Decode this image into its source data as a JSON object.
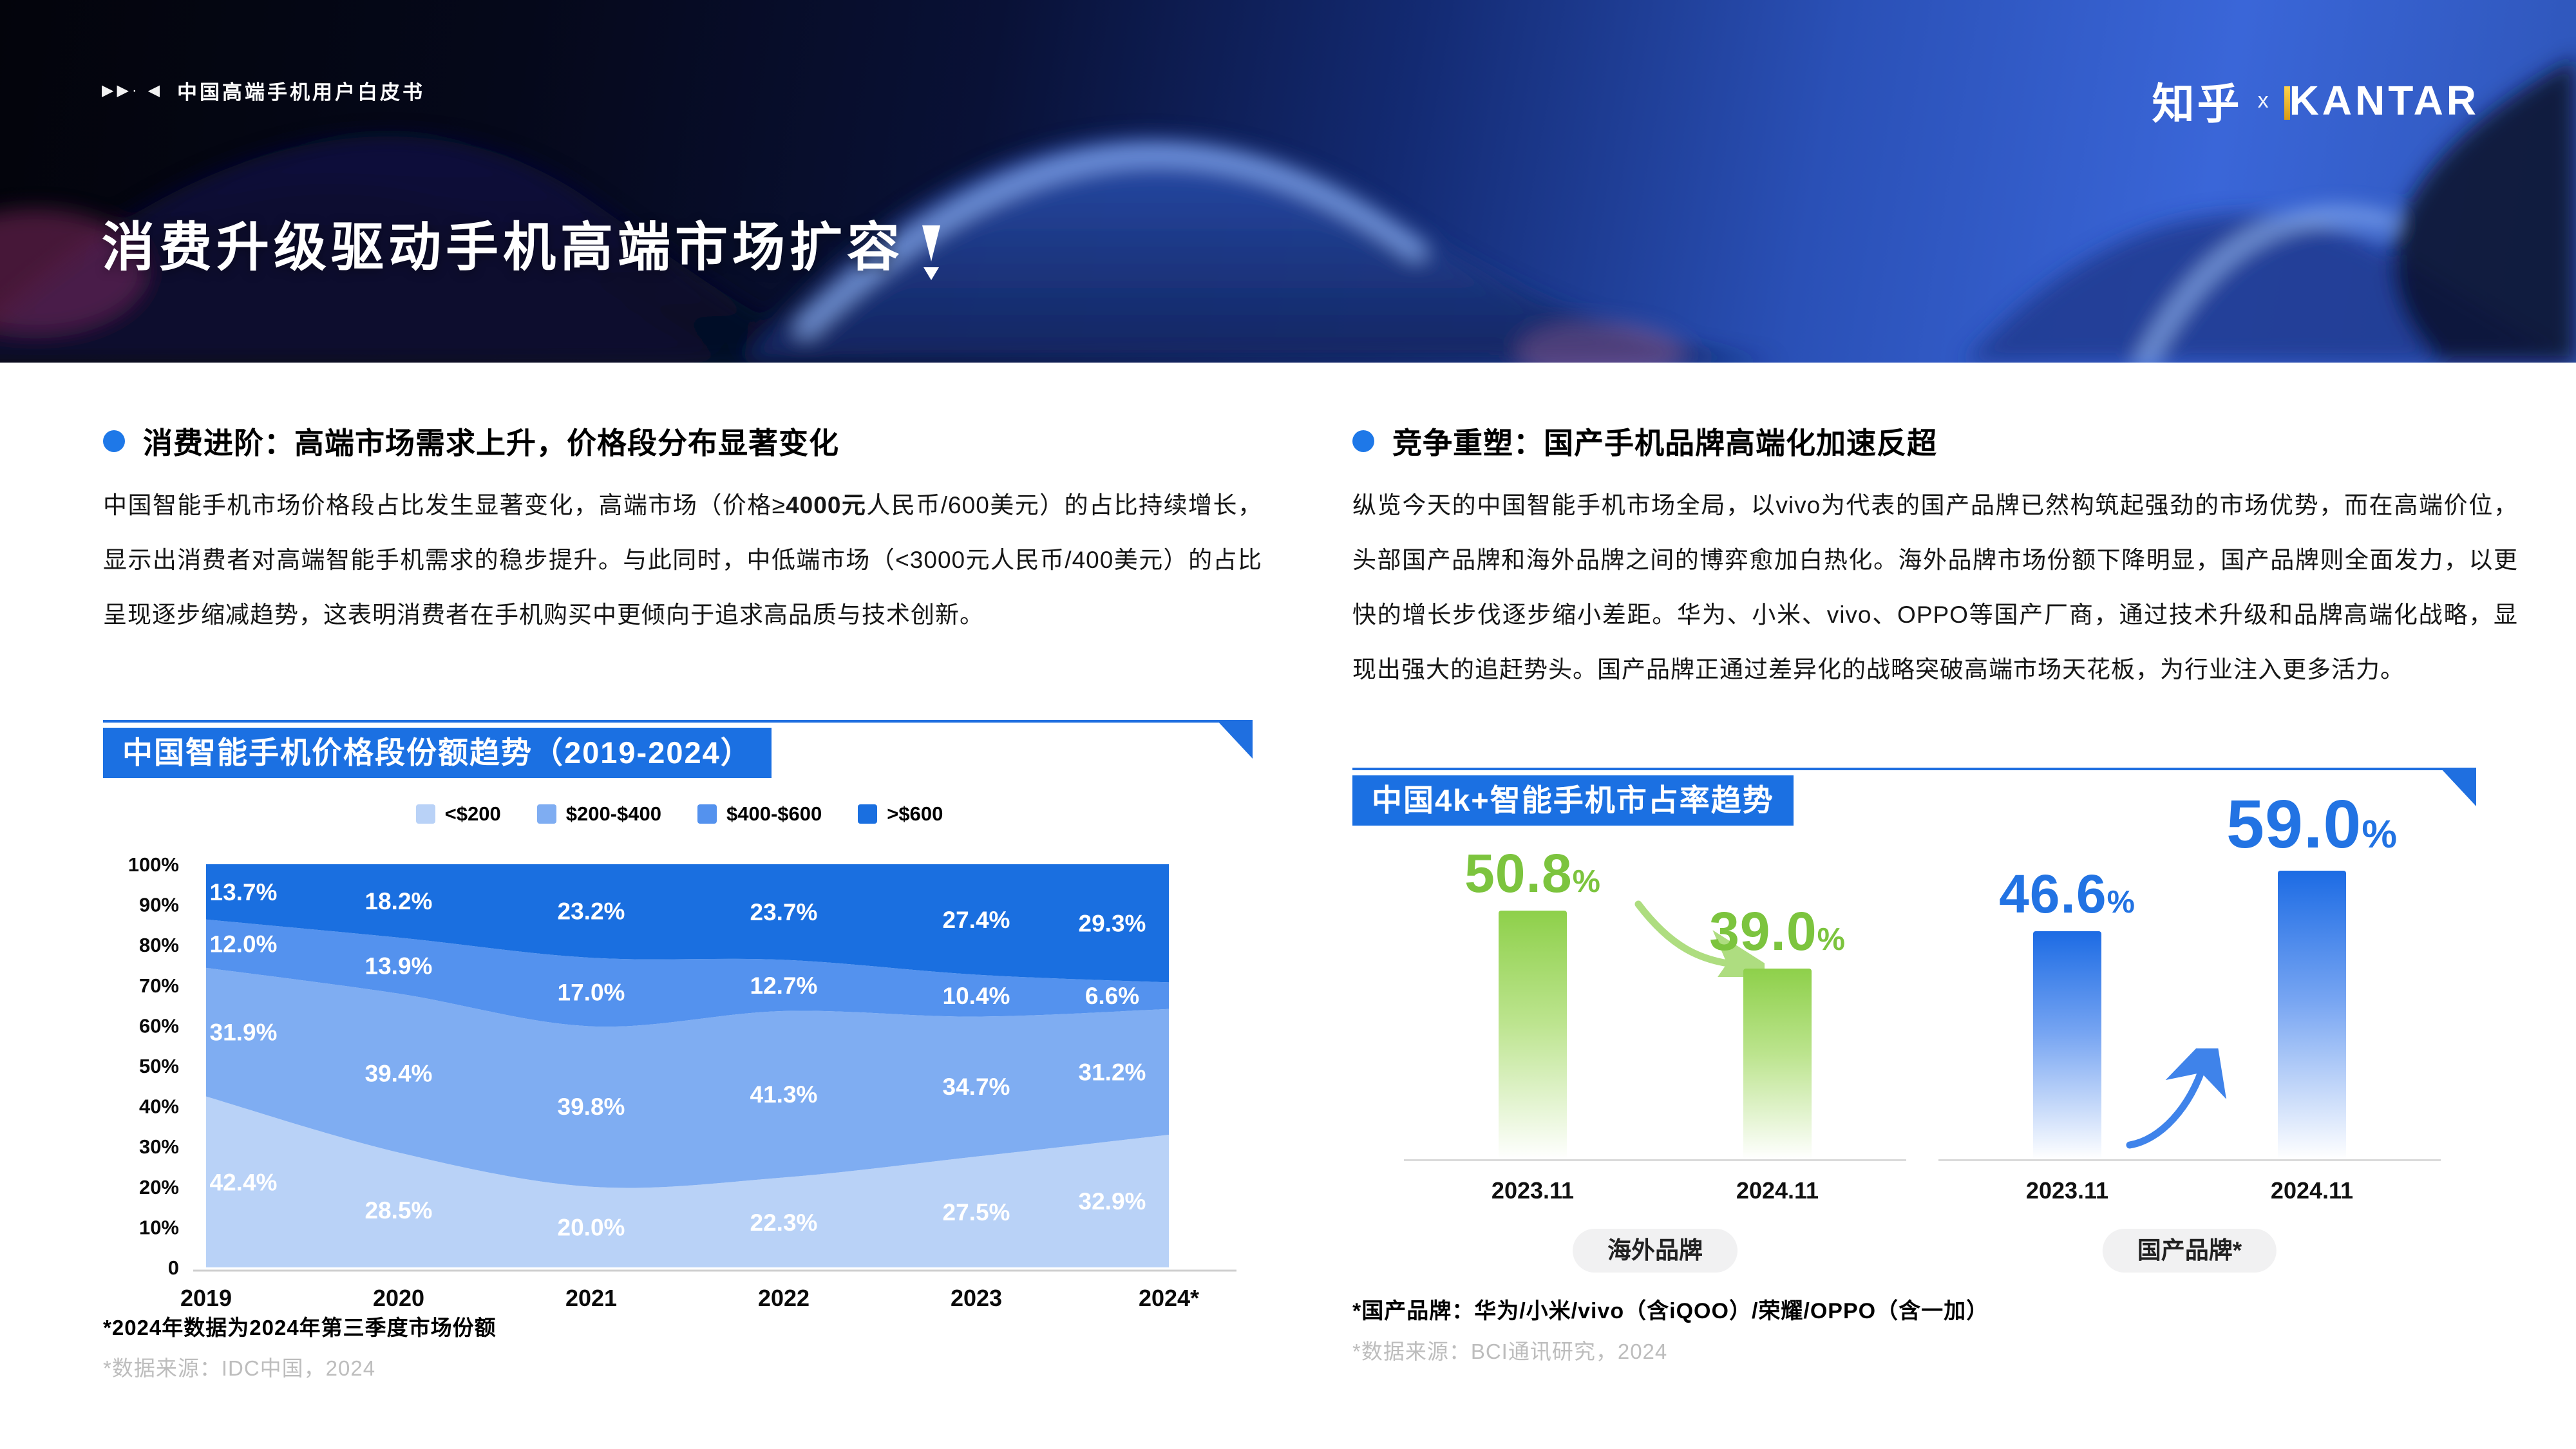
{
  "header": {
    "tagline_marks": "▶▶· ◀",
    "tagline": "中国高端手机用户白皮书",
    "logo_zhihu": "知乎",
    "logo_x": "x",
    "logo_kantar": "KANTAR"
  },
  "hero": {
    "title": "消费升级驱动手机高端市场扩容"
  },
  "left": {
    "heading": "消费进阶：高端市场需求上升，价格段分布显著变化",
    "para": {
      "p1": "中国智能手机市场价格段占比发生显著变化，高端市场（价格≥",
      "bold": "4000元",
      "p2": "人民币/600美元）的占比持续增长，显示出消费者对高端智能手机需求的稳步提升。与此同时，中低端市场（<3000元人民币/400美元）的占比呈现逐步缩减趋势，这表明消费者在手机购买中更倾向于追求高品质与技术创新。"
    },
    "chart_title": "中国智能手机价格段份额趋势（2019-2024）",
    "footnote1": "*2024年数据为2024年第三季度市场份额",
    "footnote2": "*数据来源：IDC中国，2024"
  },
  "right": {
    "heading": "竞争重塑：国产手机品牌高端化加速反超",
    "para": {
      "p1": "纵览今天的中国智能手机市场全局，以vivo为代表的国产品牌已然构筑起强劲的市场优势，而在高端价位，头部国产品牌和海外品牌之间的博弈愈加白热化。海外品牌市场份额下降明显，国产品牌则全面发力，以更快的增长步伐逐步缩小差距。华为、小米、vivo、OPPO等国产厂商，通过技术升级和品牌高端化战略，显现出强大的追赶势头。国产品牌正通过差异化的战略突破高端市场天花板，为行业注入更多活力。"
    },
    "chart_title": "中国4k+智能手机市占率趋势",
    "footnote1": "*国产品牌：华为/小米/vivo（含iQOO）/荣耀/OPPO（含一加）",
    "footnote2": "*数据来源：BCI通讯研究，2024"
  },
  "chart_data": [
    {
      "type": "area",
      "title": "中国智能手机价格段份额趋势（2019-2024）",
      "stacked_percent": true,
      "unit": "%",
      "categories": [
        "2019",
        "2020",
        "2021",
        "2022",
        "2023",
        "2024*"
      ],
      "series": [
        {
          "name": "<$200",
          "color": "#b9d2f7",
          "values": [
            42.4,
            28.5,
            20.0,
            22.3,
            27.5,
            32.9
          ]
        },
        {
          "name": "$200-$400",
          "color": "#7fadf2",
          "values": [
            31.9,
            39.4,
            39.8,
            41.3,
            34.7,
            31.2
          ]
        },
        {
          "name": "$400-$600",
          "color": "#5492ee",
          "values": [
            12.0,
            13.9,
            17.0,
            12.7,
            10.4,
            6.6
          ]
        },
        {
          "name": ">$600",
          "color": "#1a6fe0",
          "values": [
            13.7,
            18.2,
            23.2,
            23.7,
            27.4,
            29.3
          ]
        }
      ],
      "y_ticks": [
        "0",
        "10%",
        "20%",
        "30%",
        "40%",
        "50%",
        "60%",
        "70%",
        "80%",
        "90%",
        "100%"
      ],
      "ylim": [
        0,
        100
      ],
      "legend_position": "top",
      "grid": false
    },
    {
      "type": "bar",
      "title": "中国4k+智能手机市占率趋势",
      "unit": "%",
      "groups": [
        {
          "label": "海外品牌",
          "trend": "down",
          "bar_color_top": "#8ed04a",
          "bar_color_mid": "#bce48e",
          "label_color": "#7cc43e",
          "bars": [
            {
              "category": "2023.11",
              "value": 50.8
            },
            {
              "category": "2024.11",
              "value": 39.0
            }
          ]
        },
        {
          "label": "国产品牌*",
          "trend": "up",
          "bar_color_top": "#1c6be4",
          "bar_color_mid": "#77a5f2",
          "label_color": "#2273e3",
          "bars": [
            {
              "category": "2023.11",
              "value": 46.6
            },
            {
              "category": "2024.11",
              "value": 59.0,
              "emphasis": true
            }
          ]
        }
      ]
    }
  ]
}
